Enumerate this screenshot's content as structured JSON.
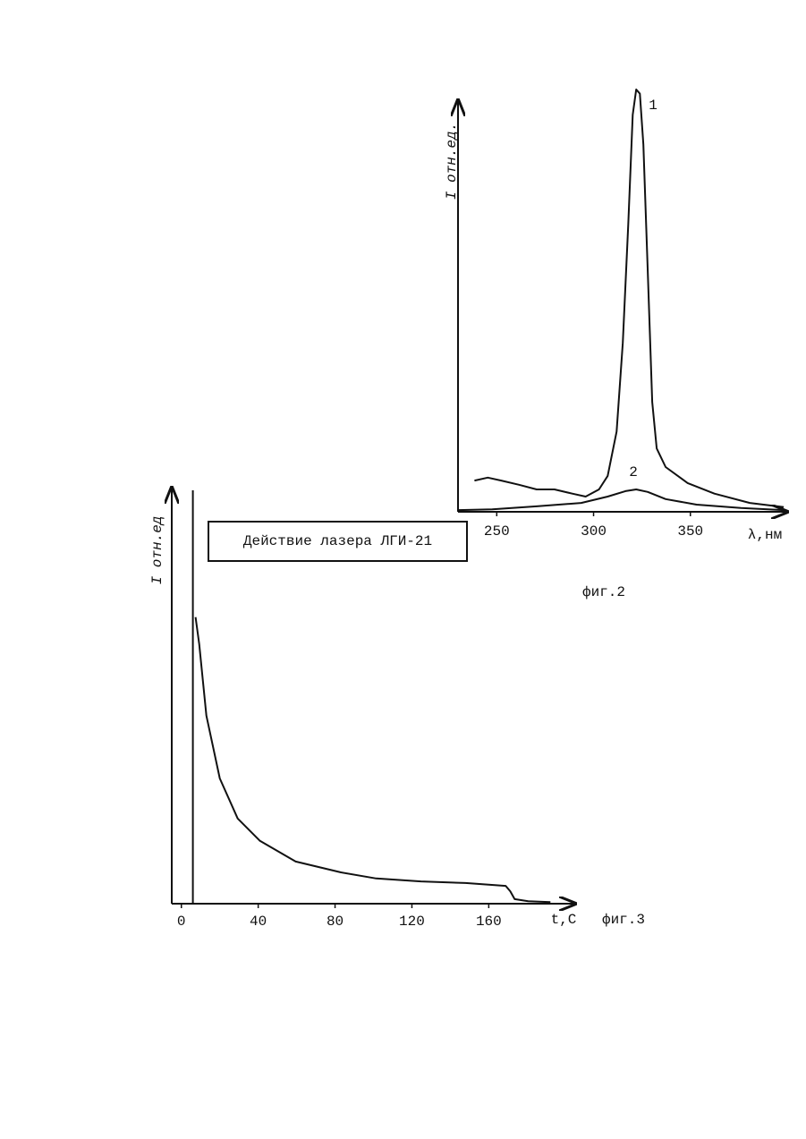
{
  "chart_data": [
    {
      "type": "line",
      "caption": "фиг.2",
      "x_label": "λ,нм",
      "y_label": "I отн.ед.",
      "xlim": [
        230,
        400
      ],
      "xticks": [
        250,
        300,
        350
      ],
      "ylim": [
        0,
        100
      ],
      "series": [
        {
          "name": "1",
          "color": "#111111",
          "x": [
            238.5,
            245.4,
            252.3,
            261.5,
            270.6,
            279.8,
            289,
            295.9,
            302.8,
            307.3,
            311.9,
            315.1,
            317.9,
            320.2,
            322,
            323.9,
            325.7,
            328,
            330.3,
            332.6,
            337.2,
            348.6,
            362.4,
            380.7,
            398.2
          ],
          "values": [
            7.4,
            8.1,
            7.4,
            6.4,
            5.3,
            5.3,
            4.3,
            3.6,
            5.3,
            8.5,
            19,
            40,
            68,
            94,
            100,
            99,
            87,
            57,
            26,
            15,
            10.6,
            6.8,
            4.3,
            2.1,
            1.1
          ]
        },
        {
          "name": "2",
          "color": "#111111",
          "x": [
            230.3,
            247.7,
            270.6,
            293.6,
            307.3,
            316.5,
            322,
            328,
            337.2,
            353.2,
            376.1,
            398.2
          ],
          "values": [
            0.4,
            0.6,
            1.3,
            2.1,
            3.6,
            4.9,
            5.3,
            4.7,
            3.0,
            1.7,
            0.9,
            0.4
          ]
        }
      ]
    },
    {
      "type": "line",
      "caption": "фиг.3",
      "x_label": "t,C",
      "y_label": "I отн.ед",
      "annotation": "Действие лазера ЛГИ-21",
      "xlim": [
        -5,
        205
      ],
      "xticks": [
        0,
        40,
        80,
        120,
        160
      ],
      "ylim": [
        0,
        100
      ],
      "series": [
        {
          "color": "#111111",
          "x": [
            6,
            6
          ],
          "values": [
            0,
            100
          ]
        },
        {
          "color": "#111111",
          "x": [
            7.4,
            9.3,
            13,
            20,
            29.3,
            40.9,
            59.5,
            82.8,
            101.4,
            124.7,
            147.9,
            168.8,
            171.2,
            173.5,
            180.5,
            192.1
          ],
          "values": [
            69.3,
            62.8,
            45.5,
            30.3,
            20.6,
            15.2,
            10.2,
            7.6,
            6.1,
            5.4,
            5.0,
            4.3,
            3.0,
            1.1,
            0.6,
            0.4
          ]
        }
      ]
    }
  ]
}
